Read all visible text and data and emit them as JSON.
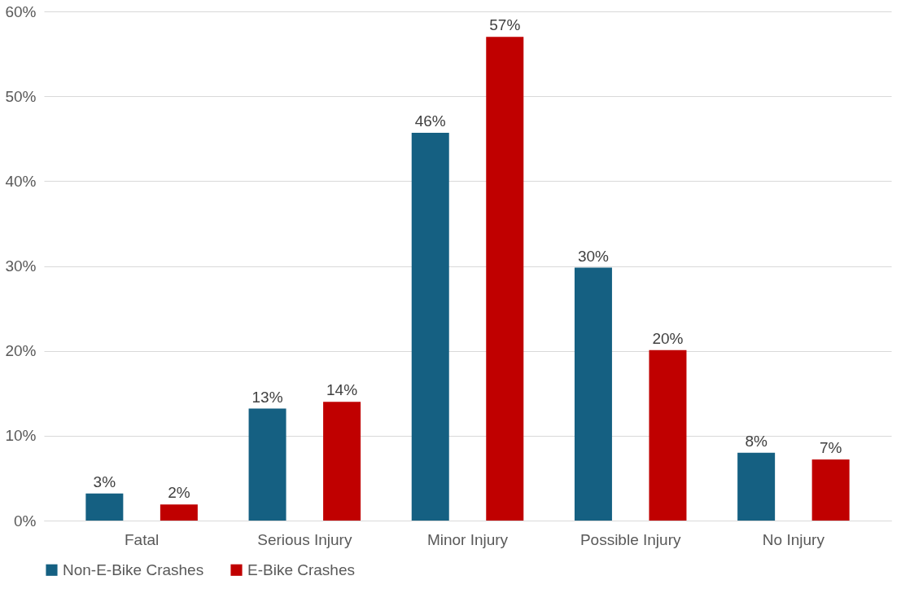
{
  "chart_data": {
    "type": "bar",
    "categories": [
      "Fatal",
      "Serious Injury",
      "Minor Injury",
      "Possible Injury",
      "No Injury"
    ],
    "series": [
      {
        "name": "Non-E-Bike Crashes",
        "color": "#156082",
        "values": [
          3.2,
          13.2,
          45.7,
          29.8,
          8.0
        ],
        "value_labels": [
          "3%",
          "13%",
          "46%",
          "30%",
          "8%"
        ]
      },
      {
        "name": "E-Bike Crashes",
        "color": "#c00000",
        "values": [
          1.9,
          14.0,
          57.0,
          20.1,
          7.2
        ],
        "value_labels": [
          "2%",
          "14%",
          "57%",
          "20%",
          "7%"
        ]
      }
    ],
    "ylim": [
      0,
      60
    ],
    "yticks": [
      {
        "value": 0,
        "label": "0%"
      },
      {
        "value": 10,
        "label": "10%"
      },
      {
        "value": 20,
        "label": "20%"
      },
      {
        "value": 30,
        "label": "30%"
      },
      {
        "value": 40,
        "label": "40%"
      },
      {
        "value": 50,
        "label": "50%"
      },
      {
        "value": 60,
        "label": "60%"
      }
    ],
    "grid": "y",
    "legend": "bottom"
  }
}
